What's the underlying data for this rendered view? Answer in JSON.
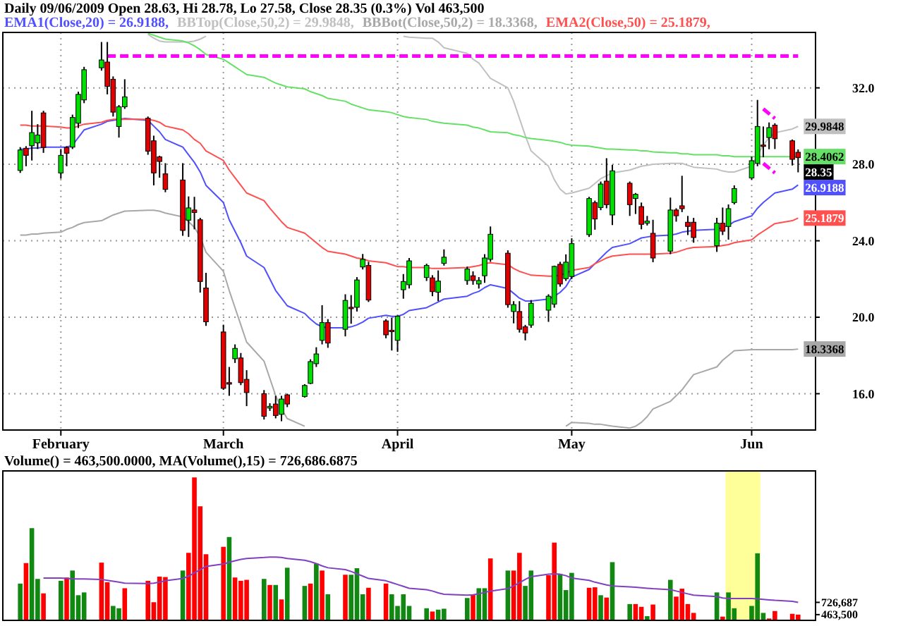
{
  "chart_data": [
    {
      "type": "candlestick",
      "title": "Daily 09/06/2009 Open 28.63, Hi 28.78, Lo 27.58, Close 28.35 (0.3%) Vol 463,500",
      "legend": "top",
      "grid": true,
      "x": [
        "2009-01-26",
        "2009-01-27",
        "2009-01-28",
        "2009-01-29",
        "2009-01-30",
        "2009-02-02",
        "2009-02-03",
        "2009-02-04",
        "2009-02-05",
        "2009-02-06",
        "2009-02-09",
        "2009-02-10",
        "2009-02-11",
        "2009-02-12",
        "2009-02-13",
        "2009-02-17",
        "2009-02-18",
        "2009-02-19",
        "2009-02-20",
        "2009-02-23",
        "2009-02-24",
        "2009-02-25",
        "2009-02-26",
        "2009-02-27",
        "2009-03-02",
        "2009-03-03",
        "2009-03-04",
        "2009-03-05",
        "2009-03-06",
        "2009-03-09",
        "2009-03-10",
        "2009-03-11",
        "2009-03-12",
        "2009-03-13",
        "2009-03-16",
        "2009-03-17",
        "2009-03-18",
        "2009-03-19",
        "2009-03-20",
        "2009-03-23",
        "2009-03-24",
        "2009-03-25",
        "2009-03-26",
        "2009-03-27",
        "2009-03-30",
        "2009-03-31",
        "2009-04-01",
        "2009-04-02",
        "2009-04-03",
        "2009-04-06",
        "2009-04-07",
        "2009-04-08",
        "2009-04-09",
        "2009-04-13",
        "2009-04-14",
        "2009-04-15",
        "2009-04-16",
        "2009-04-17",
        "2009-04-20",
        "2009-04-21",
        "2009-04-22",
        "2009-04-23",
        "2009-04-24",
        "2009-04-27",
        "2009-04-28",
        "2009-04-29",
        "2009-04-30",
        "2009-05-01",
        "2009-05-04",
        "2009-05-05",
        "2009-05-06",
        "2009-05-07",
        "2009-05-08",
        "2009-05-11",
        "2009-05-12",
        "2009-05-13",
        "2009-05-14",
        "2009-05-15",
        "2009-05-18",
        "2009-05-19",
        "2009-05-20",
        "2009-05-21",
        "2009-05-22",
        "2009-05-26",
        "2009-05-27",
        "2009-05-28",
        "2009-05-29",
        "2009-06-01",
        "2009-06-02",
        "2009-06-03",
        "2009-06-04",
        "2009-06-05",
        "2009-06-08",
        "2009-06-09"
      ],
      "ohlc": [
        [
          27.68,
          28.9,
          27.55,
          28.75
        ],
        [
          28.84,
          28.95,
          27.9,
          28.47
        ],
        [
          28.97,
          30.8,
          28.2,
          29.66
        ],
        [
          29.12,
          30.1,
          28.8,
          29.53
        ],
        [
          30.69,
          30.8,
          28.6,
          28.88
        ],
        [
          27.55,
          28.8,
          27.25,
          28.47
        ],
        [
          28.88,
          28.95,
          27.9,
          28.58
        ],
        [
          28.9,
          30.6,
          28.8,
          30.45
        ],
        [
          30.15,
          31.8,
          29.9,
          31.66
        ],
        [
          31.37,
          33.1,
          31.2,
          32.95
        ],
        [
          33.05,
          34.4,
          32.9,
          33.46
        ],
        [
          33.35,
          34.4,
          31.66,
          32.08
        ],
        [
          32.45,
          32.6,
          30.5,
          30.73
        ],
        [
          29.98,
          31.1,
          29.4,
          31.01
        ],
        [
          31.01,
          32.45,
          30.9,
          31.53
        ],
        [
          30.41,
          30.5,
          28.5,
          28.69
        ],
        [
          29.23,
          29.5,
          26.9,
          27.55
        ],
        [
          28.39,
          28.45,
          27.3,
          28.15
        ],
        [
          27.5,
          28.06,
          26.54,
          26.69
        ],
        [
          27.18,
          28.06,
          24.26,
          24.54
        ],
        [
          25.08,
          26.32,
          24.2,
          25.72
        ],
        [
          25.61,
          26.3,
          24.6,
          25.48
        ],
        [
          25.1,
          25.2,
          21.29,
          21.87
        ],
        [
          21.53,
          22.32,
          19.55,
          19.76
        ],
        [
          19.23,
          19.61,
          16.2,
          16.28
        ],
        [
          16.58,
          17.4,
          15.89,
          16.5
        ],
        [
          17.83,
          18.58,
          17.61,
          18.37
        ],
        [
          17.87,
          18.13,
          16.45,
          16.58
        ],
        [
          16.75,
          17.23,
          15.35,
          16.06
        ],
        [
          16.0,
          16.19,
          14.65,
          14.82
        ],
        [
          15.25,
          15.5,
          15.1,
          15.34
        ],
        [
          15.46,
          15.89,
          14.71,
          14.86
        ],
        [
          14.92,
          15.89,
          14.56,
          15.72
        ],
        [
          15.94,
          16.0,
          15.3,
          15.46
        ],
        [
          15.85,
          16.5,
          15.8,
          16.43
        ],
        [
          16.54,
          17.8,
          16.5,
          17.68
        ],
        [
          17.57,
          18.43,
          17.4,
          18.08
        ],
        [
          18.79,
          20.63,
          18.58,
          19.72
        ],
        [
          19.72,
          19.9,
          18.4,
          18.65
        ],
        [
          19.37,
          21.2,
          19.0,
          20.88
        ],
        [
          20.52,
          21.16,
          19.66,
          20.45
        ],
        [
          20.52,
          22.1,
          20.3,
          21.95
        ],
        [
          22.63,
          23.31,
          22.5,
          23.03
        ],
        [
          22.71,
          22.9,
          20.8,
          20.9
        ],
        [
          19.81,
          19.9,
          18.9,
          19.08
        ],
        [
          19.32,
          19.98,
          18.26,
          19.26
        ],
        [
          18.79,
          20.1,
          18.19,
          20.05
        ],
        [
          21.44,
          22.26,
          20.97,
          21.87
        ],
        [
          21.7,
          23.1,
          21.5,
          22.95
        ],
        [
          22.08,
          22.8,
          21.9,
          22.71
        ],
        [
          22.06,
          22.2,
          21.1,
          21.34
        ],
        [
          21.31,
          22.45,
          20.84,
          21.89
        ],
        [
          22.82,
          23.55,
          22.7,
          23.14
        ],
        [
          21.92,
          22.65,
          21.7,
          22.52
        ],
        [
          22.17,
          22.4,
          21.7,
          21.92
        ],
        [
          21.74,
          22.1,
          21.5,
          21.92
        ],
        [
          22.17,
          23.3,
          21.8,
          23.1
        ],
        [
          23.03,
          24.75,
          22.9,
          24.34
        ],
        [
          23.35,
          23.5,
          20.5,
          20.66
        ],
        [
          20.3,
          20.84,
          19.68,
          20.66
        ],
        [
          20.3,
          20.84,
          19.2,
          19.37
        ],
        [
          19.5,
          19.6,
          18.79,
          19.18
        ],
        [
          19.59,
          20.9,
          19.45,
          20.73
        ],
        [
          20.37,
          21.2,
          19.76,
          21.1
        ],
        [
          20.69,
          22.7,
          20.5,
          22.66
        ],
        [
          22.77,
          22.9,
          21.6,
          21.74
        ],
        [
          22.02,
          23.29,
          21.9,
          22.88
        ],
        [
          22.13,
          24.13,
          22.0,
          23.85
        ],
        [
          24.32,
          26.3,
          24.2,
          26.21
        ],
        [
          26.0,
          26.1,
          24.58,
          25.14
        ],
        [
          25.74,
          27.1,
          25.6,
          26.97
        ],
        [
          27.12,
          28.32,
          25.7,
          25.89
        ],
        [
          25.35,
          27.98,
          24.82,
          27.66
        ],
        [
          27.01,
          27.1,
          25.3,
          25.89
        ],
        [
          26.21,
          26.5,
          25.4,
          26.43
        ],
        [
          25.79,
          26.0,
          24.6,
          24.86
        ],
        [
          24.92,
          25.3,
          24.8,
          25.03
        ],
        [
          24.39,
          25.1,
          22.88,
          23.1
        ],
        [
          23.46,
          26.26,
          23.3,
          25.61
        ],
        [
          25.61,
          25.7,
          25.0,
          25.31
        ],
        [
          25.83,
          27.4,
          25.5,
          25.68
        ],
        [
          24.97,
          25.3,
          24.3,
          24.75
        ],
        [
          24.97,
          25.2,
          23.9,
          24.17
        ],
        [
          23.74,
          25.2,
          23.42,
          24.92
        ],
        [
          24.92,
          25.74,
          24.3,
          24.5
        ],
        [
          24.75,
          25.9,
          24.06,
          25.68
        ],
        [
          26.0,
          26.9,
          25.9,
          26.73
        ],
        [
          27.29,
          28.4,
          27.2,
          28.19
        ],
        [
          28.05,
          31.37,
          27.9,
          29.98
        ],
        [
          29.01,
          29.98,
          28.37,
          28.95
        ],
        [
          29.4,
          30.19,
          28.79,
          29.92
        ],
        [
          30.05,
          30.15,
          28.8,
          29.34
        ],
        [
          29.23,
          29.3,
          27.94,
          28.26
        ],
        [
          28.63,
          28.78,
          27.58,
          28.35
        ]
      ],
      "colors": [
        "#00e000",
        "#e00000",
        "#00e000",
        "#00e000",
        "#e00000",
        "#00e000",
        "#e00000",
        "#00e000",
        "#00e000",
        "#00e000",
        "#00e000",
        "#e00000",
        "#e00000",
        "#00e000",
        "#00e000",
        "#e00000",
        "#e00000",
        "#e00000",
        "#e00000",
        "#e00000",
        "#00e000",
        "#e00000",
        "#e00000",
        "#e00000",
        "#e00000",
        "#e00000",
        "#00e000",
        "#e00000",
        "#e00000",
        "#e00000",
        "#00e000",
        "#e00000",
        "#00e000",
        "#e00000",
        "#00e000",
        "#00e000",
        "#00e000",
        "#00e000",
        "#e00000",
        "#00e000",
        "#e00000",
        "#00e000",
        "#00e000",
        "#e00000",
        "#e00000",
        "#e00000",
        "#00e000",
        "#00e000",
        "#00e000",
        "#00e000",
        "#e00000",
        "#00e000",
        "#00e000",
        "#00e000",
        "#e00000",
        "#00e000",
        "#00e000",
        "#00e000",
        "#e00000",
        "#00e000",
        "#e00000",
        "#e00000",
        "#00e000",
        "#00e000",
        "#00e000",
        "#e00000",
        "#00e000",
        "#00e000",
        "#00e000",
        "#e00000",
        "#00e000",
        "#e00000",
        "#00e000",
        "#e00000",
        "#00e000",
        "#e00000",
        "#00e000",
        "#e00000",
        "#00e000",
        "#e00000",
        "#e00000",
        "#e00000",
        "#e00000",
        "#00e000",
        "#e00000",
        "#00e000",
        "#00e000",
        "#00e000",
        "#00e000",
        "#e00000",
        "#00e000",
        "#e00000",
        "#e00000",
        "#e00000"
      ],
      "series": [
        {
          "type": "line",
          "name": "EMA1(Close,20) = 26.9188,",
          "color": "#5050ff",
          "values": [
            28.8,
            28.8,
            28.85,
            28.85,
            28.9,
            28.9,
            28.9,
            29.0,
            29.4,
            29.8,
            30.1,
            30.25,
            30.3,
            30.35,
            30.4,
            30.3,
            30.0,
            29.7,
            29.3,
            28.9,
            28.5,
            28.1,
            27.6,
            26.9,
            26.0,
            25.1,
            24.5,
            23.9,
            23.2,
            22.6,
            22.0,
            21.4,
            21.0,
            20.6,
            20.2,
            19.9,
            19.65,
            19.5,
            19.45,
            19.45,
            19.5,
            19.6,
            19.75,
            19.95,
            20.1,
            20.05,
            20.05,
            20.15,
            20.35,
            20.5,
            20.65,
            20.8,
            20.95,
            21.1,
            21.25,
            21.35,
            21.55,
            21.7,
            21.5,
            21.25,
            21.0,
            20.85,
            20.85,
            20.95,
            21.1,
            21.3,
            21.6,
            22.1,
            22.5,
            22.8,
            23.1,
            23.4,
            23.65,
            23.85,
            24.0,
            24.15,
            24.2,
            24.25,
            24.3,
            24.35,
            24.45,
            24.5,
            24.55,
            24.6,
            24.7,
            24.8,
            25.0,
            25.3,
            25.7,
            26.0,
            26.25,
            26.5,
            26.7,
            26.9188
          ]
        },
        {
          "type": "line",
          "name": "BBTop(Close,50,2) = 29.9848,",
          "color": "#c0c0c0",
          "values": [
            null,
            null,
            null,
            null,
            null,
            null,
            null,
            null,
            null,
            null,
            null,
            null,
            null,
            null,
            null,
            34.8,
            34.6,
            34.45,
            34.4,
            34.4,
            34.4,
            34.45,
            34.55,
            34.7,
            null,
            null,
            null,
            null,
            null,
            null,
            null,
            null,
            null,
            null,
            null,
            null,
            null,
            null,
            null,
            null,
            null,
            null,
            null,
            null,
            null,
            null,
            null,
            34.7,
            34.65,
            34.6,
            34.6,
            34.4,
            34.1,
            33.8,
            33.5,
            33.3,
            32.9,
            32.5,
            32.0,
            31.3,
            30.4,
            29.5,
            28.7,
            27.9,
            27.2,
            26.7,
            26.45,
            26.5,
            26.75,
            27.0,
            27.25,
            27.4,
            27.55,
            27.7,
            27.8,
            27.9,
            27.95,
            28.0,
            28.05,
            28.05,
            28.05,
            27.95,
            27.85,
            27.75,
            27.65,
            27.6,
            27.6,
            27.9,
            28.5,
            29.0,
            29.4,
            29.65,
            29.85,
            29.9848
          ]
        },
        {
          "type": "line",
          "name": "BBBot(Close,50,2) = 18.3368,",
          "color": "#a8a8a8",
          "values": [
            24.3,
            24.3,
            24.35,
            24.35,
            24.4,
            24.45,
            24.6,
            24.7,
            24.85,
            24.95,
            25.05,
            25.2,
            25.35,
            25.45,
            25.55,
            25.6,
            25.6,
            25.55,
            25.45,
            25.25,
            25.0,
            24.7,
            24.2,
            23.4,
            22.4,
            21.4,
            20.5,
            19.6,
            18.7,
            17.7,
            16.8,
            15.9,
            15.2,
            14.7,
            14.3,
            null,
            null,
            null,
            null,
            null,
            null,
            null,
            null,
            null,
            null,
            null,
            null,
            null,
            null,
            null,
            null,
            null,
            null,
            null,
            null,
            null,
            null,
            null,
            null,
            null,
            null,
            null,
            null,
            null,
            null,
            null,
            14.3,
            14.5,
            14.45,
            14.4,
            14.4,
            14.35,
            14.3,
            14.2,
            14.3,
            14.5,
            14.8,
            15.2,
            15.6,
            15.9,
            16.2,
            16.6,
            17.0,
            17.4,
            17.75,
            18.0,
            18.25,
            18.3,
            18.3,
            18.3,
            18.3,
            18.3,
            18.3,
            18.3368
          ]
        },
        {
          "type": "line",
          "name": "EMA2(Close,50) = 25.1879,",
          "color": "#ff5050",
          "values": [
            30.05,
            30.05,
            30.0,
            30.0,
            30.0,
            29.95,
            29.9,
            29.9,
            30.0,
            30.1,
            30.2,
            30.3,
            30.35,
            30.35,
            30.35,
            30.35,
            30.3,
            30.2,
            30.0,
            29.8,
            29.6,
            29.3,
            29.1,
            28.7,
            28.2,
            27.7,
            27.3,
            26.9,
            26.5,
            26.1,
            25.7,
            25.35,
            25.0,
            24.7,
            24.4,
            24.15,
            23.9,
            23.65,
            23.45,
            23.3,
            23.2,
            23.1,
            23.05,
            22.95,
            22.85,
            22.75,
            22.65,
            22.65,
            22.6,
            22.6,
            22.55,
            22.55,
            22.55,
            22.6,
            22.65,
            22.7,
            22.8,
            22.85,
            22.75,
            22.55,
            22.4,
            22.3,
            22.2,
            22.15,
            22.15,
            22.2,
            22.3,
            22.45,
            22.6,
            22.8,
            22.95,
            23.1,
            23.2,
            23.3,
            23.3,
            23.3,
            23.3,
            23.3,
            23.35,
            23.4,
            23.5,
            23.6,
            23.65,
            23.7,
            23.75,
            23.8,
            23.9,
            24.05,
            24.3,
            24.5,
            24.7,
            24.9,
            25.05,
            25.1879
          ]
        },
        {
          "type": "line",
          "color": "#66e066",
          "values": [
            null,
            null,
            null,
            null,
            null,
            null,
            null,
            null,
            null,
            null,
            null,
            null,
            null,
            null,
            null,
            34.85,
            34.75,
            34.65,
            34.55,
            34.45,
            34.35,
            34.2,
            34.0,
            33.75,
            33.5,
            33.3,
            33.1,
            32.9,
            32.7,
            32.55,
            32.4,
            32.25,
            32.15,
            32.05,
            31.95,
            31.8,
            31.7,
            31.6,
            31.45,
            31.3,
            31.15,
            31.05,
            30.95,
            30.85,
            30.75,
            30.7,
            30.6,
            30.5,
            30.45,
            30.35,
            30.25,
            30.2,
            30.15,
            30.05,
            29.95,
            29.9,
            29.8,
            29.7,
            29.65,
            29.55,
            29.5,
            29.4,
            29.35,
            29.25,
            29.2,
            29.15,
            29.05,
            29.0,
            28.95,
            28.9,
            28.85,
            28.8,
            28.8,
            28.75,
            28.75,
            28.7,
            28.7,
            28.65,
            28.6,
            28.6,
            28.55,
            28.55,
            28.5,
            28.5,
            28.45,
            28.45,
            28.4,
            28.4,
            28.4,
            28.4,
            28.4,
            28.4,
            28.4,
            28.4062
          ]
        },
        {
          "type": "line",
          "color": "#ff00ff",
          "line_style": "dashed",
          "x": [
            "2009-02-10",
            "2009-06-09"
          ],
          "values": [
            33.66,
            33.66
          ]
        },
        {
          "type": "line",
          "color": "#ff00ff",
          "line_style": "dashed",
          "x": [
            "2009-06-03",
            "2009-06-05"
          ],
          "values": [
            30.9,
            30.4
          ]
        },
        {
          "type": "line",
          "color": "#ff00ff",
          "line_style": "dashed",
          "x": [
            "2009-06-03",
            "2009-06-05"
          ],
          "values": [
            28.05,
            27.55
          ]
        }
      ],
      "xlim": [
        "2009-01-23",
        "2009-06-12"
      ],
      "xticks": [
        {
          "value": "2009-02-02",
          "label": "February"
        },
        {
          "value": "2009-03-02",
          "label": "March"
        },
        {
          "value": "2009-04-01",
          "label": "April"
        },
        {
          "value": "2009-05-01",
          "label": "May"
        },
        {
          "value": "2009-06-01",
          "label": "Jun"
        }
      ],
      "ylim": [
        14.1,
        34.9
      ],
      "yticks": [
        {
          "value": 16,
          "label": "16.0"
        },
        {
          "value": 20,
          "label": "20.0"
        },
        {
          "value": 24,
          "label": "24.0"
        },
        {
          "value": 28,
          "label": "28.0"
        },
        {
          "value": 32,
          "label": "32.0"
        }
      ],
      "annotations": [
        {
          "text": "29.9848",
          "x": "2009-06-09",
          "y": 29.9848
        },
        {
          "text": "28.4062",
          "x": "2009-06-09",
          "y": 28.4062
        },
        {
          "text": "28.35",
          "x": "2009-06-09",
          "y": 28.35
        },
        {
          "text": "26.9188",
          "x": "2009-06-09",
          "y": 26.9188
        },
        {
          "text": "25.1879",
          "x": "2009-06-09",
          "y": 25.1879
        },
        {
          "text": "18.3368",
          "x": "2009-06-09",
          "y": 18.3368
        }
      ]
    },
    {
      "type": "bar",
      "title": "Volume() = 463,500.0000, MA(Volume(),15) = 726,686.6875",
      "tick_labels": "y",
      "x": [
        "2009-01-26",
        "2009-01-27",
        "2009-01-28",
        "2009-01-29",
        "2009-01-30",
        "2009-02-02",
        "2009-02-03",
        "2009-02-04",
        "2009-02-05",
        "2009-02-06",
        "2009-02-09",
        "2009-02-10",
        "2009-02-11",
        "2009-02-12",
        "2009-02-13",
        "2009-02-17",
        "2009-02-18",
        "2009-02-19",
        "2009-02-20",
        "2009-02-23",
        "2009-02-24",
        "2009-02-25",
        "2009-02-26",
        "2009-02-27",
        "2009-03-02",
        "2009-03-03",
        "2009-03-04",
        "2009-03-05",
        "2009-03-06",
        "2009-03-09",
        "2009-03-10",
        "2009-03-11",
        "2009-03-12",
        "2009-03-13",
        "2009-03-16",
        "2009-03-17",
        "2009-03-18",
        "2009-03-19",
        "2009-03-20",
        "2009-03-23",
        "2009-03-24",
        "2009-03-25",
        "2009-03-26",
        "2009-03-27",
        "2009-03-30",
        "2009-03-31",
        "2009-04-01",
        "2009-04-02",
        "2009-04-03",
        "2009-04-06",
        "2009-04-07",
        "2009-04-08",
        "2009-04-09",
        "2009-04-13",
        "2009-04-14",
        "2009-04-15",
        "2009-04-16",
        "2009-04-17",
        "2009-04-20",
        "2009-04-21",
        "2009-04-22",
        "2009-04-23",
        "2009-04-24",
        "2009-04-27",
        "2009-04-28",
        "2009-04-29",
        "2009-04-30",
        "2009-05-01",
        "2009-05-04",
        "2009-05-05",
        "2009-05-06",
        "2009-05-07",
        "2009-05-08",
        "2009-05-11",
        "2009-05-12",
        "2009-05-13",
        "2009-05-14",
        "2009-05-15",
        "2009-05-18",
        "2009-05-19",
        "2009-05-20",
        "2009-05-21",
        "2009-05-22",
        "2009-05-26",
        "2009-05-27",
        "2009-05-28",
        "2009-05-29",
        "2009-06-01",
        "2009-06-02",
        "2009-06-03",
        "2009-06-04",
        "2009-06-05",
        "2009-06-08",
        "2009-06-09"
      ],
      "series": [
        {
          "type": "bar",
          "colors": [
            "#118811",
            "#ff0000",
            "#118811",
            "#118811",
            "#ff0000",
            "#118811",
            "#ff0000",
            "#118811",
            "#118811",
            "#118811",
            "#ff0000",
            "#ff0000",
            "#118811",
            "#118811",
            "#ff0000",
            "#ff0000",
            "#ff0000",
            "#ff0000",
            "#ff0000",
            "#118811",
            "#ff0000",
            "#ff0000",
            "#ff0000",
            "#ff0000",
            "#ff0000",
            "#118811",
            "#ff0000",
            "#ff0000",
            "#ff0000",
            "#118811",
            "#ff0000",
            "#118811",
            "#ff0000",
            "#118811",
            "#118811",
            "#ff0000",
            "#118811",
            "#ff0000",
            "#118811",
            "#ff0000",
            "#118811",
            "#118811",
            "#118811",
            "#ff0000",
            "#ff0000",
            "#118811",
            "#118811",
            "#118811",
            "#118811",
            "#118811",
            "#ff0000",
            "#118811",
            "#118811",
            "#118811",
            "#ff0000",
            "#118811",
            "#118811",
            "#ff0000",
            "#118811",
            "#ff0000",
            "#ff0000",
            "#118811",
            "#118811",
            "#ff0000",
            "#ff0000",
            "#118811",
            "#118811",
            "#118811",
            "#ff0000",
            "#ff0000",
            "#118811",
            "#ff0000",
            "#118811",
            "#118811",
            "#ff0000",
            "#ff0000",
            "#118811",
            "#ff0000",
            "#118811",
            "#ff0000",
            "#ff0000",
            "#ff0000",
            "#ff0000",
            "#118811",
            "#ff0000",
            "#118811",
            "#118811",
            "#118811",
            "#118811",
            "#118811",
            "#ff0000",
            "#ff0000",
            "#ff0000",
            "#ff0000"
          ],
          "values": [
            1130000,
            1570000,
            2320000,
            1230000,
            920000,
            1190000,
            1260000,
            1410000,
            880000,
            940000,
            1580000,
            1160000,
            650000,
            600000,
            1030000,
            1190000,
            730000,
            1280000,
            1270000,
            1410000,
            1790000,
            3410000,
            2790000,
            1760000,
            1920000,
            2130000,
            1260000,
            1190000,
            1210000,
            1230000,
            1100000,
            1100000,
            790000,
            1470000,
            1080000,
            1130000,
            1560000,
            1410000,
            900000,
            1320000,
            1320000,
            1460000,
            900000,
            1040000,
            1130000,
            900000,
            650000,
            900000,
            650000,
            600000,
            530000,
            570000,
            590000,
            820000,
            900000,
            1030000,
            1030000,
            1670000,
            1410000,
            1410000,
            1790000,
            1080000,
            1410000,
            1310000,
            2010000,
            1340000,
            990000,
            1360000,
            1040000,
            1050000,
            880000,
            830000,
            1590000,
            690000,
            690000,
            630000,
            430000,
            680000,
            1210000,
            850000,
            1020000,
            690000,
            500000,
            940000,
            420000,
            940000,
            600000,
            650000,
            1780000,
            500000,
            380000,
            540000,
            480000,
            463500
          ]
        },
        {
          "type": "line",
          "color": "#8040c0",
          "values": [
            null,
            null,
            null,
            null,
            1250000,
            1250000,
            1240000,
            1230000,
            1230000,
            1230000,
            1220000,
            1200000,
            1180000,
            1160000,
            1140000,
            1130000,
            1140000,
            1160000,
            1190000,
            1240000,
            1290000,
            1360000,
            1430000,
            1500000,
            1550000,
            1590000,
            1620000,
            1650000,
            1670000,
            1690000,
            1700000,
            1700000,
            1690000,
            1670000,
            1630000,
            1600000,
            1560000,
            1510000,
            1470000,
            1430000,
            1390000,
            1340000,
            1290000,
            1240000,
            1190000,
            1150000,
            1110000,
            1070000,
            1030000,
            1000000,
            970000,
            930000,
            900000,
            880000,
            890000,
            910000,
            940000,
            970000,
            1020000,
            1080000,
            1150000,
            1220000,
            1280000,
            1330000,
            1340000,
            1330000,
            1300000,
            1250000,
            1200000,
            1160000,
            1130000,
            1100000,
            1080000,
            1060000,
            1050000,
            1040000,
            1030000,
            1020000,
            1000000,
            970000,
            940000,
            910000,
            880000,
            850000,
            820000,
            810000,
            810000,
            810000,
            800000,
            790000,
            780000,
            770000,
            750000,
            726687
          ]
        }
      ],
      "xlim": [
        "2009-01-23",
        "2009-06-12"
      ],
      "ylim": [
        340000,
        3550000
      ],
      "yticks": [
        {
          "value": 463500,
          "label": "463,500"
        },
        {
          "value": 726687,
          "label": "726,687"
        }
      ],
      "bands": [
        {
          "axis": "x",
          "from": "2009-05-27T12:00",
          "to": "2009-06-02T12:00",
          "color": "#ffff99"
        }
      ]
    }
  ]
}
